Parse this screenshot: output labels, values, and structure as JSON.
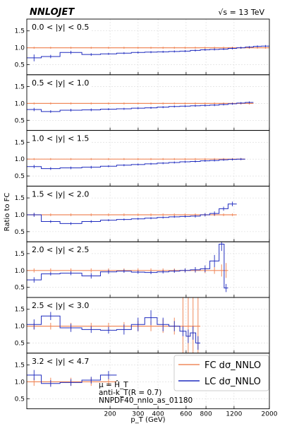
{
  "header": {
    "logo": "NNLOJET",
    "energy": "√s = 13 TeV"
  },
  "ylabel": "Ratio to FC",
  "xlabel": "p_T (GeV)",
  "legend": [
    {
      "label": "FC dσ_NNLO",
      "color": "#f08a5d"
    },
    {
      "label": "LC dσ_NNLO",
      "color": "#1f2bbf"
    }
  ],
  "notes": [
    "μ = Ĥ_T",
    "anti-k_T(R = 0.7)",
    "NNPDF40_nnlo_as_01180"
  ],
  "colors": {
    "fc": "#f08a5d",
    "lc": "#1f2bbf",
    "grid": "#d9d9d9"
  },
  "chart_data": {
    "type": "line",
    "xscale": "log",
    "xlim": [
      60,
      2000
    ],
    "x_ticks": [
      200,
      300,
      400,
      600,
      800,
      1200,
      2000
    ],
    "y_ticks": [
      0.5,
      1.0,
      1.5
    ],
    "ylim": [
      0.2,
      1.85
    ],
    "series_names": [
      "FC dσ_NNLO",
      "LC dσ_NNLO"
    ],
    "panels": [
      {
        "label": "0.0 < |y| < 0.5",
        "edges": [
          60,
          74,
          97,
          133,
          174,
          220,
          272,
          330,
          395,
          468,
          548,
          638,
          737,
          846,
          967,
          1101,
          1248,
          1410,
          1588,
          1784,
          2000
        ],
        "fc_err": [
          0.03,
          0.03,
          0.03,
          0.03,
          0.03,
          0.03,
          0.03,
          0.03,
          0.03,
          0.03,
          0.03,
          0.03,
          0.03,
          0.03,
          0.03,
          0.03,
          0.03,
          0.03,
          0.03,
          0.03
        ],
        "lc": [
          0.7,
          0.74,
          0.86,
          0.8,
          0.82,
          0.84,
          0.86,
          0.87,
          0.88,
          0.89,
          0.9,
          0.92,
          0.94,
          0.95,
          0.96,
          0.98,
          1.0,
          1.02,
          1.04,
          1.05
        ],
        "lc_err": [
          0.1,
          0.05,
          0.05,
          0.04,
          0.03,
          0.03,
          0.03,
          0.03,
          0.03,
          0.03,
          0.03,
          0.03,
          0.03,
          0.03,
          0.03,
          0.03,
          0.03,
          0.03,
          0.03,
          0.03
        ]
      },
      {
        "label": "0.5 < |y| < 1.0",
        "edges": [
          60,
          74,
          97,
          133,
          174,
          220,
          272,
          330,
          395,
          468,
          548,
          638,
          737,
          846,
          967,
          1101,
          1248,
          1410,
          1588
        ],
        "fc_err": [
          0.03,
          0.03,
          0.03,
          0.03,
          0.03,
          0.03,
          0.03,
          0.03,
          0.03,
          0.03,
          0.03,
          0.03,
          0.03,
          0.03,
          0.03,
          0.03,
          0.03,
          0.03
        ],
        "lc": [
          0.82,
          0.76,
          0.8,
          0.81,
          0.83,
          0.84,
          0.86,
          0.87,
          0.89,
          0.91,
          0.92,
          0.93,
          0.94,
          0.95,
          0.97,
          0.99,
          1.01,
          1.03
        ],
        "lc_err": [
          0.05,
          0.04,
          0.04,
          0.04,
          0.03,
          0.03,
          0.03,
          0.03,
          0.03,
          0.03,
          0.03,
          0.03,
          0.03,
          0.03,
          0.03,
          0.03,
          0.03,
          0.03
        ]
      },
      {
        "label": "1.0 < |y| < 1.5",
        "edges": [
          60,
          74,
          97,
          133,
          174,
          220,
          272,
          330,
          395,
          468,
          548,
          638,
          737,
          846,
          967,
          1101,
          1248,
          1410
        ],
        "fc_err": [
          0.03,
          0.03,
          0.03,
          0.03,
          0.03,
          0.03,
          0.03,
          0.03,
          0.03,
          0.03,
          0.03,
          0.03,
          0.03,
          0.03,
          0.03,
          0.03,
          0.03
        ],
        "lc": [
          0.78,
          0.72,
          0.74,
          0.76,
          0.79,
          0.82,
          0.84,
          0.86,
          0.88,
          0.9,
          0.92,
          0.93,
          0.95,
          0.96,
          0.98,
          0.99,
          1.0
        ],
        "lc_err": [
          0.05,
          0.04,
          0.04,
          0.04,
          0.03,
          0.03,
          0.03,
          0.03,
          0.03,
          0.03,
          0.03,
          0.03,
          0.03,
          0.03,
          0.03,
          0.03,
          0.03
        ]
      },
      {
        "label": "1.5 < |y| < 2.0",
        "edges": [
          60,
          74,
          97,
          133,
          174,
          220,
          272,
          330,
          395,
          468,
          548,
          638,
          737,
          846,
          967,
          1101,
          1248
        ],
        "fc_err": [
          0.04,
          0.04,
          0.04,
          0.04,
          0.04,
          0.04,
          0.04,
          0.04,
          0.04,
          0.04,
          0.04,
          0.04,
          0.04,
          0.04,
          0.04,
          0.04
        ],
        "lc": [
          1.0,
          0.8,
          0.74,
          0.8,
          0.84,
          0.86,
          0.88,
          0.9,
          0.92,
          0.94,
          0.95,
          0.96,
          1.0,
          1.04,
          1.18,
          1.32
        ],
        "lc_err": [
          0.06,
          0.04,
          0.04,
          0.04,
          0.03,
          0.03,
          0.03,
          0.03,
          0.03,
          0.03,
          0.03,
          0.04,
          0.05,
          0.06,
          0.06,
          0.07
        ]
      },
      {
        "label": "2.0 < |y| < 2.5",
        "edges": [
          60,
          74,
          97,
          133,
          174,
          220,
          272,
          330,
          395,
          468,
          548,
          638,
          737,
          846,
          967,
          1040,
          1101
        ],
        "fc_err": [
          0.06,
          0.06,
          0.06,
          0.06,
          0.06,
          0.06,
          0.06,
          0.06,
          0.06,
          0.06,
          0.06,
          0.06,
          0.08,
          0.1,
          0.18,
          0.22
        ],
        "lc": [
          0.72,
          0.9,
          0.92,
          0.84,
          0.96,
          0.98,
          0.95,
          0.94,
          0.96,
          0.98,
          1.0,
          1.02,
          1.05,
          1.28,
          1.78,
          0.48
        ],
        "lc_err": [
          0.08,
          0.05,
          0.06,
          0.08,
          0.06,
          0.05,
          0.05,
          0.05,
          0.05,
          0.05,
          0.06,
          0.08,
          0.1,
          0.18,
          0.2,
          0.12
        ]
      },
      {
        "label": "2.5 < |y| < 3.0",
        "edges": [
          60,
          74,
          97,
          133,
          174,
          220,
          272,
          330,
          395,
          468,
          548,
          600,
          638,
          690,
          737
        ],
        "fc_err": [
          0.1,
          0.1,
          0.1,
          0.1,
          0.1,
          0.12,
          0.15,
          0.15,
          0.2,
          0.25,
          1.05,
          1.05,
          1.05,
          1.05
        ],
        "lc": [
          1.05,
          1.3,
          0.95,
          0.9,
          0.88,
          0.9,
          1.05,
          1.25,
          1.05,
          1.0,
          0.85,
          0.7,
          0.8,
          0.5
        ],
        "lc_err": [
          0.15,
          0.12,
          0.12,
          0.1,
          0.1,
          0.15,
          0.2,
          0.22,
          0.2,
          0.15,
          0.15,
          0.2,
          0.2,
          0.2
        ]
      },
      {
        "label": "3.2 < |y| < 4.7",
        "edges": [
          60,
          74,
          97,
          133,
          174,
          220
        ],
        "fc_err": [
          0.12,
          0.12,
          0.12,
          0.12,
          0.12
        ],
        "lc": [
          1.2,
          0.95,
          0.98,
          1.05,
          1.2
        ],
        "lc_err": [
          0.15,
          0.1,
          0.1,
          0.1,
          0.12
        ]
      }
    ]
  }
}
